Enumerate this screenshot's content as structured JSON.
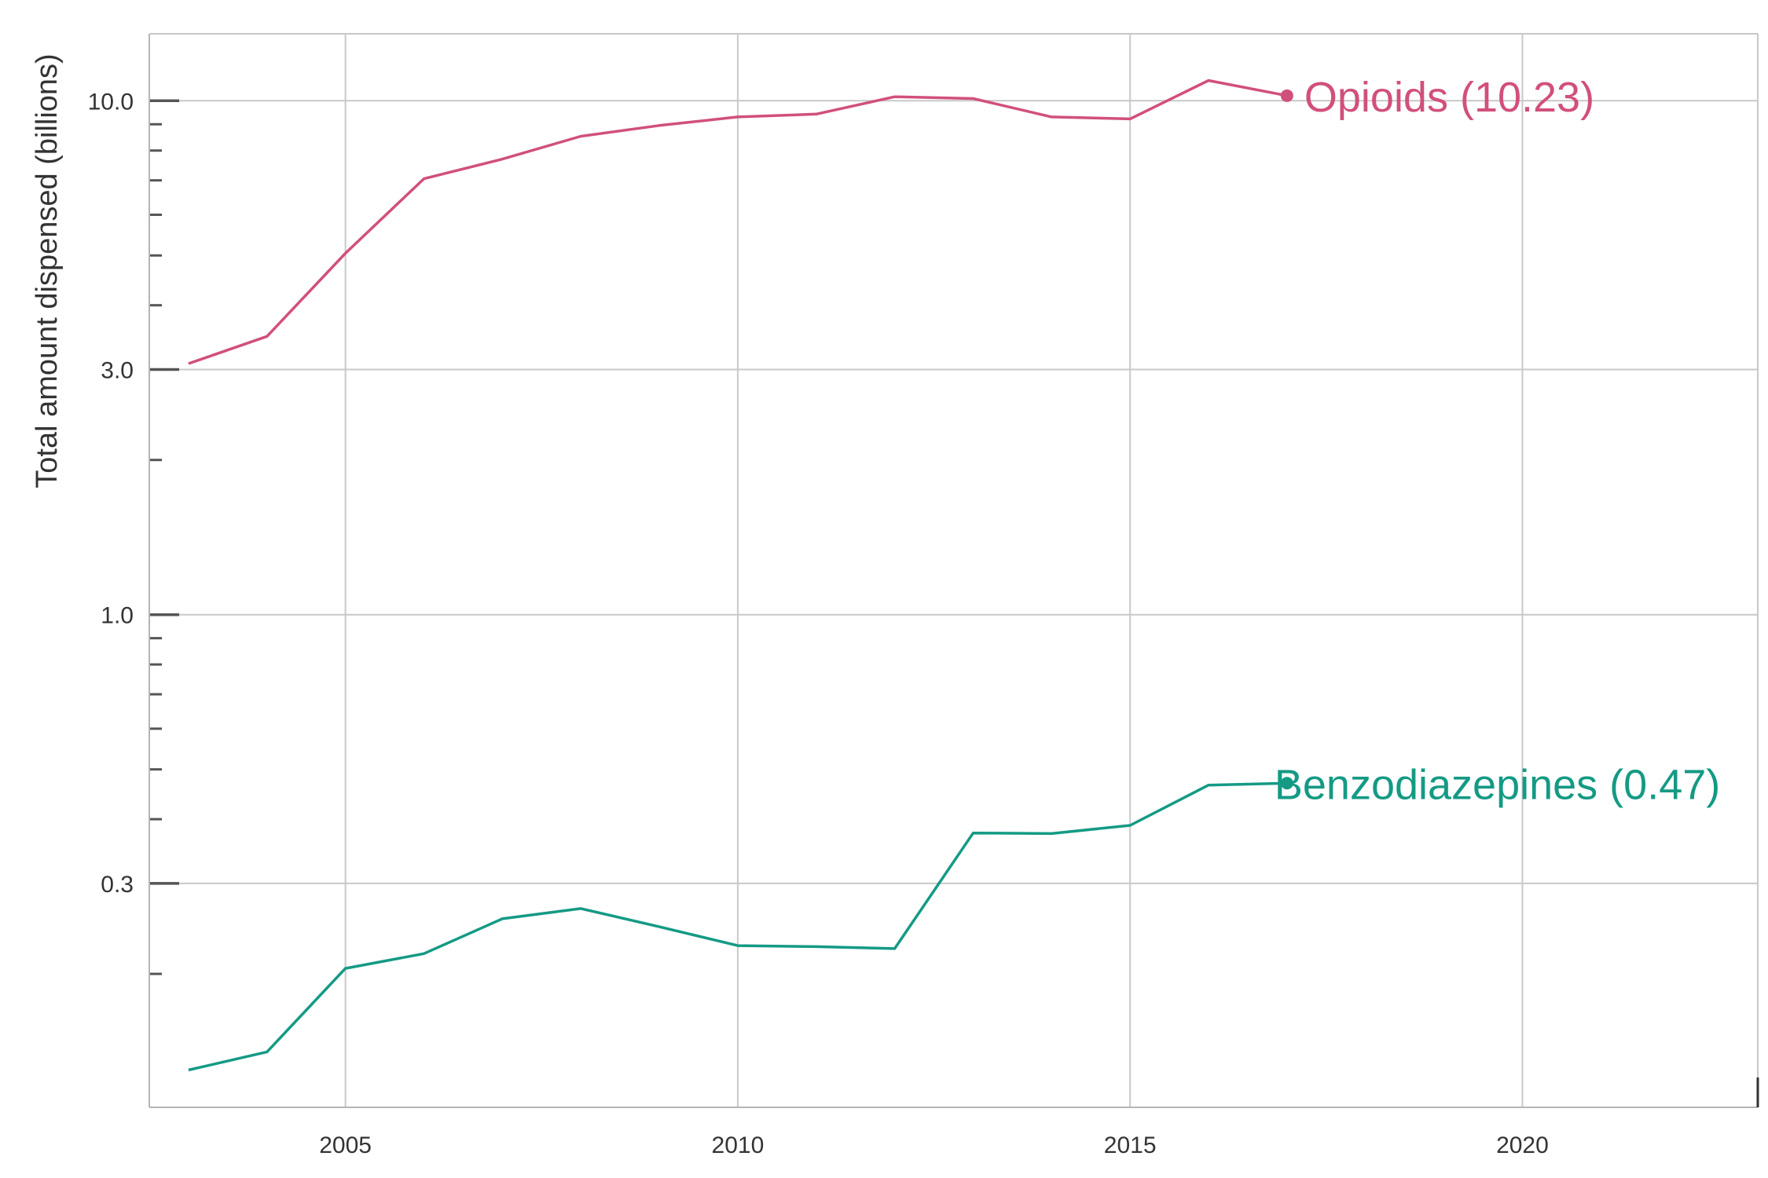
{
  "chart_data": {
    "type": "line",
    "title": "",
    "xlabel": "",
    "ylabel": "Total amount dispensed (billions)",
    "y_scale": "log",
    "xlim": [
      2002.5,
      2023.0
    ],
    "ylim": [
      0.11,
      13.5
    ],
    "grid": true,
    "x_ticks": [
      2005,
      2010,
      2015,
      2020
    ],
    "y_ticks": [
      0.3,
      1.0,
      3.0,
      10.0
    ],
    "y_tick_labels": [
      "0.3",
      "1.0",
      "3.0",
      "10.0"
    ],
    "x": [
      2003,
      2004,
      2005,
      2006,
      2007,
      2008,
      2009,
      2010,
      2011,
      2012,
      2013,
      2014,
      2015,
      2016,
      2017
    ],
    "series": [
      {
        "key": "opioids",
        "label": "Opioids (10.23)",
        "color": "#d1507a",
        "values": [
          3.08,
          3.48,
          5.05,
          7.05,
          7.7,
          8.53,
          8.95,
          9.3,
          9.42,
          10.18,
          10.1,
          9.3,
          9.22,
          10.95,
          10.23
        ]
      },
      {
        "key": "benzodiazepines",
        "label": "Benzodiazepines (0.47)",
        "color": "#149a84",
        "values": [
          0.13,
          0.141,
          0.205,
          0.219,
          0.256,
          0.268,
          0.247,
          0.227,
          0.226,
          0.224,
          0.376,
          0.375,
          0.389,
          0.466,
          0.47
        ]
      }
    ]
  }
}
